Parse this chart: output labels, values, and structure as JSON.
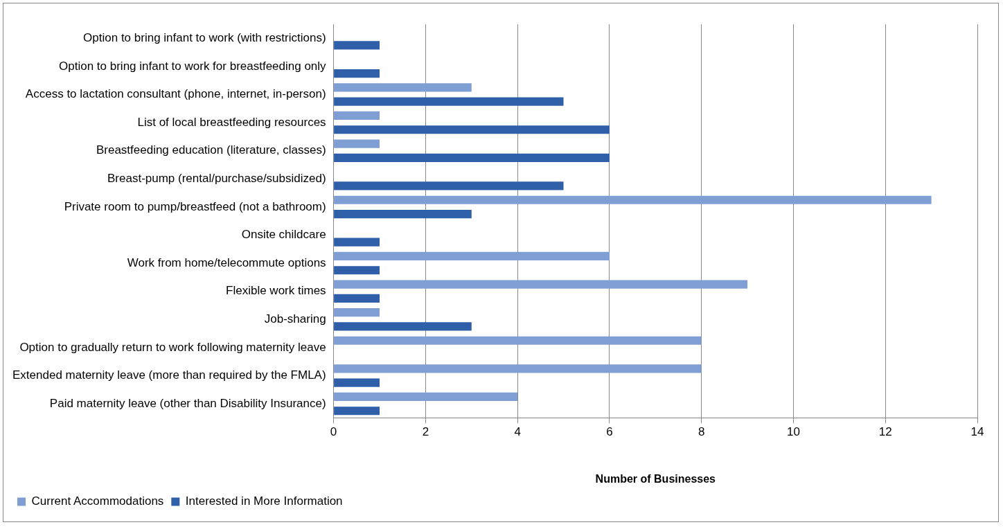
{
  "chart_data": {
    "type": "bar",
    "orientation": "horizontal",
    "xlabel": "Number of Businesses",
    "categories": [
      "Option to bring infant to work (with restrictions)",
      "Option to bring infant to work for breastfeeding only",
      "Access to lactation consultant (phone, internet, in-person)",
      "List of local breastfeeding resources",
      "Breastfeeding education (literature, classes)",
      "Breast-pump (rental/purchase/subsidized)",
      "Private room to pump/breastfeed (not a bathroom)",
      "Onsite childcare",
      "Work from home/telecommute options",
      "Flexible work times",
      "Job-sharing",
      "Option to gradually return to work following maternity leave",
      "Extended maternity leave (more than required by the FMLA)",
      "Paid maternity leave (other than Disability Insurance)"
    ],
    "series": [
      {
        "name": "Current Accommodations",
        "color": "#7f9ed3",
        "values": [
          0,
          0,
          3,
          1,
          1,
          0,
          13,
          0,
          6,
          9,
          1,
          8,
          8,
          4
        ]
      },
      {
        "name": "Interested in More Information",
        "color": "#2f5fa8",
        "values": [
          1,
          1,
          5,
          6,
          6,
          5,
          3,
          1,
          1,
          1,
          3,
          0,
          1,
          1
        ]
      }
    ],
    "xlim": [
      0,
      14
    ],
    "xticks": [
      0,
      2,
      4,
      6,
      8,
      10,
      12,
      14
    ],
    "grid": "x",
    "legend": "bottom left"
  }
}
